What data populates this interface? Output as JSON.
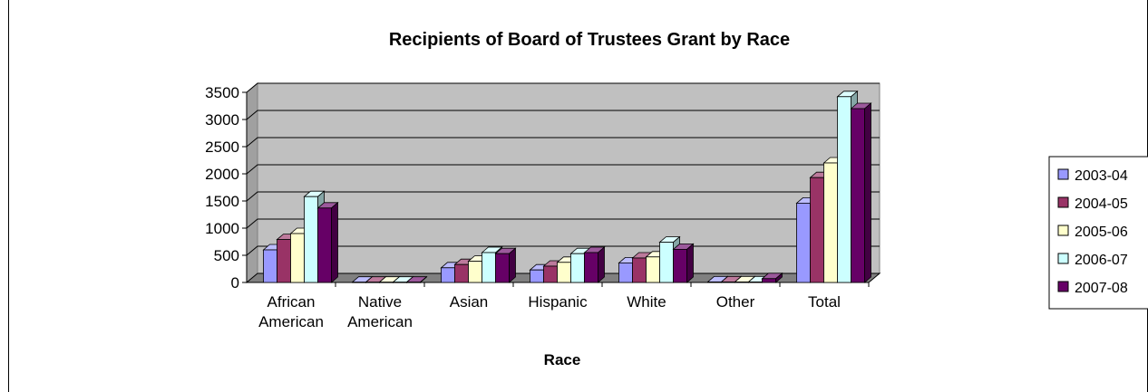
{
  "chart_data": {
    "type": "bar",
    "style": "3d-clustered-column",
    "title": "Recipients of Board of Trustees Grant by Race",
    "xlabel": "Race",
    "ylabel": "",
    "categories": [
      [
        "African",
        "American"
      ],
      [
        "Native",
        "American"
      ],
      [
        "Asian"
      ],
      [
        "Hispanic"
      ],
      [
        "White"
      ],
      [
        "Other"
      ],
      [
        "Total"
      ]
    ],
    "ylim": [
      0,
      3500
    ],
    "yticks": [
      "0",
      "500",
      "1000",
      "1500",
      "2000",
      "2500",
      "3000",
      "3500"
    ],
    "grid": true,
    "legend_position": "right",
    "series": [
      {
        "name": "2003-04",
        "color": "#9999ff",
        "values": [
          600,
          5,
          270,
          230,
          360,
          10,
          1460
        ]
      },
      {
        "name": "2004-05",
        "color": "#993366",
        "values": [
          790,
          5,
          330,
          300,
          450,
          10,
          1930
        ]
      },
      {
        "name": "2005-06",
        "color": "#ffffcc",
        "values": [
          900,
          5,
          390,
          370,
          470,
          10,
          2200
        ]
      },
      {
        "name": "2006-07",
        "color": "#ccffff",
        "values": [
          1580,
          5,
          550,
          530,
          740,
          10,
          3420
        ]
      },
      {
        "name": "2007-08",
        "color": "#660066",
        "values": [
          1370,
          5,
          530,
          550,
          610,
          70,
          3200
        ]
      }
    ]
  }
}
